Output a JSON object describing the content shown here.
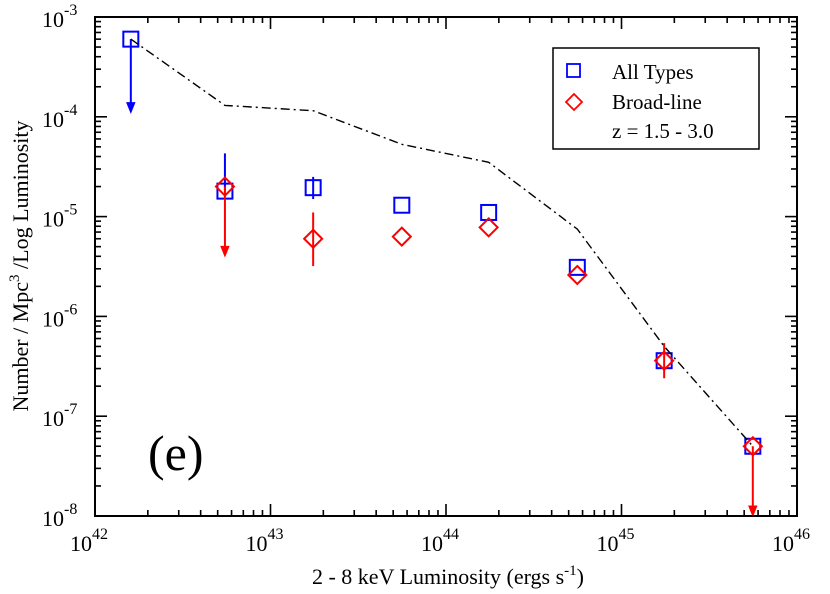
{
  "chart_data": {
    "type": "scatter",
    "xlabel": "2 - 8 keV Luminosity  (ergs s",
    "xlabel_sup": "-1",
    "xlabel_end": ")",
    "ylabel_part1": "Number / Mpc",
    "ylabel_sup": "3",
    "ylabel_part2": " /Log Luminosity",
    "x_scale": "log",
    "y_scale": "log",
    "xlim": [
      1e+42,
      1e+46
    ],
    "ylim": [
      1e-08,
      0.001
    ],
    "x_ticks": [
      {
        "base": "10",
        "exp": "42",
        "value": 1e+42
      },
      {
        "base": "10",
        "exp": "43",
        "value": 1e+43
      },
      {
        "base": "10",
        "exp": "44",
        "value": 1e+44
      },
      {
        "base": "10",
        "exp": "45",
        "value": 1e+45
      },
      {
        "base": "10",
        "exp": "46",
        "value": 1e+46
      }
    ],
    "y_ticks": [
      {
        "base": "10",
        "exp": "-8",
        "value": 1e-08
      },
      {
        "base": "10",
        "exp": "-7",
        "value": 1e-07
      },
      {
        "base": "10",
        "exp": "-6",
        "value": 1e-06
      },
      {
        "base": "10",
        "exp": "-5",
        "value": 1e-05
      },
      {
        "base": "10",
        "exp": "-4",
        "value": 0.0001
      },
      {
        "base": "10",
        "exp": "-3",
        "value": 0.001
      }
    ],
    "panel_label": "(e)",
    "legend": {
      "placement": "top-right",
      "entries": [
        {
          "label": "All Types",
          "marker": "square",
          "color": "#0000ff"
        },
        {
          "label": "Broad-line",
          "marker": "diamond",
          "color": "#ff0000"
        }
      ],
      "note": "z = 1.5 - 3.0"
    },
    "series": [
      {
        "name": "All Types",
        "marker": "square",
        "color": "#0000ff",
        "points": [
          {
            "x": 1.6e+42,
            "y": 0.0006,
            "upper_limit": true,
            "arrow_to": 0.00011
          },
          {
            "x": 5.5e+42,
            "y": 1.8e-05,
            "err_low": 1.8e-05,
            "err_high": 4.3e-05
          },
          {
            "x": 1.75e+43,
            "y": 1.95e-05,
            "err_low": 1.5e-05,
            "err_high": 2.5e-05
          },
          {
            "x": 5.6e+43,
            "y": 1.3e-05
          },
          {
            "x": 1.75e+44,
            "y": 1.1e-05
          },
          {
            "x": 5.6e+44,
            "y": 3.1e-06
          },
          {
            "x": 1.75e+45,
            "y": 3.6e-07
          },
          {
            "x": 5.6e+45,
            "y": 5e-08
          }
        ]
      },
      {
        "name": "Broad-line",
        "marker": "diamond",
        "color": "#ff0000",
        "points": [
          {
            "x": 5.5e+42,
            "y": 2e-05,
            "upper_limit": true,
            "arrow_to": 4e-06
          },
          {
            "x": 1.75e+43,
            "y": 6e-06,
            "err_low": 3.2e-06,
            "err_high": 1.1e-05
          },
          {
            "x": 5.6e+43,
            "y": 6.3e-06
          },
          {
            "x": 1.75e+44,
            "y": 7.8e-06
          },
          {
            "x": 5.6e+44,
            "y": 2.6e-06
          },
          {
            "x": 1.75e+45,
            "y": 3.6e-07,
            "err_low": 2.4e-07,
            "err_high": 5.4e-07
          },
          {
            "x": 5.6e+45,
            "y": 5e-08,
            "upper_limit": true,
            "arrow_to": 1e-08
          }
        ]
      },
      {
        "name": "",
        "style": "dash-dot",
        "color": "#000000",
        "points": [
          {
            "x": 1.6e+42,
            "y": 0.0006
          },
          {
            "x": 5.5e+42,
            "y": 0.00013
          },
          {
            "x": 1.75e+43,
            "y": 0.000115
          },
          {
            "x": 5.6e+43,
            "y": 5.3e-05
          },
          {
            "x": 1.75e+44,
            "y": 3.5e-05
          },
          {
            "x": 5.6e+44,
            "y": 7.5e-06
          },
          {
            "x": 1.75e+45,
            "y": 5e-07
          },
          {
            "x": 5.6e+45,
            "y": 5e-08
          }
        ]
      }
    ]
  }
}
